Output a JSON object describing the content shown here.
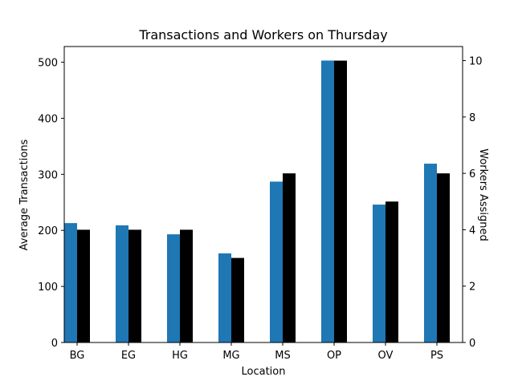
{
  "chart_data": {
    "type": "bar",
    "title": "Transactions and Workers on Thursday",
    "xlabel": "Location",
    "ylabel_left": "Average Transactions",
    "ylabel_right": "Workers Assigned",
    "categories": [
      "BG",
      "EG",
      "HG",
      "MG",
      "MS",
      "OP",
      "OV",
      "PS"
    ],
    "series": [
      {
        "name": "",
        "axis": "left",
        "color": "#1f77b4",
        "values": [
          213,
          209,
          193,
          159,
          287,
          503,
          246,
          319
        ]
      },
      {
        "name": "",
        "axis": "right",
        "color": "#000000",
        "values": [
          4,
          4,
          4,
          3,
          6,
          10,
          5,
          6
        ]
      }
    ],
    "ylim_left": [
      0,
      528
    ],
    "ylim_right": [
      0,
      10.5
    ],
    "yticks_left": [
      0,
      100,
      200,
      300,
      400,
      500
    ],
    "yticks_right": [
      0,
      2,
      4,
      6,
      8,
      10
    ],
    "grid": false,
    "legend": "none"
  }
}
